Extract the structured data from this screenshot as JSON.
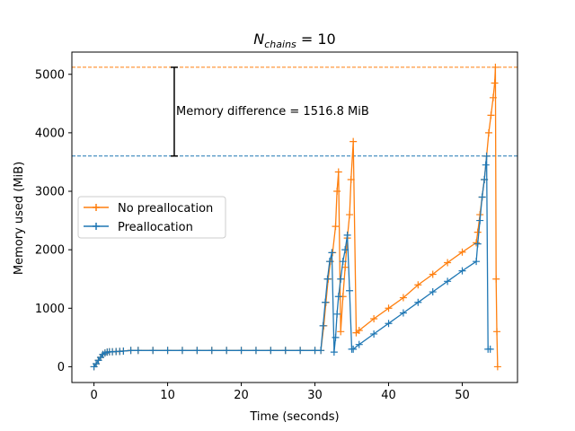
{
  "chart_data": {
    "type": "line",
    "title": "N_chains = 10",
    "title_main": "N",
    "title_sub": "chains",
    "title_rest": " = 10",
    "xlabel": "Time (seconds)",
    "ylabel": "Memory used (MiB)",
    "xlim": [
      -3,
      57.5
    ],
    "ylim": [
      -270,
      5380
    ],
    "xticks": [
      0,
      10,
      20,
      30,
      40,
      50
    ],
    "yticks": [
      0,
      1000,
      2000,
      3000,
      4000,
      5000
    ],
    "grid": false,
    "legend_position": "center-left",
    "series": [
      {
        "name": "No preallocation",
        "color": "#ff7f0e",
        "x": [
          0,
          0.3,
          0.6,
          0.9,
          1.2,
          1.5,
          1.8,
          2.1,
          2.5,
          3,
          3.5,
          4,
          5,
          6,
          8,
          10,
          12,
          14,
          16,
          18,
          20,
          22,
          24,
          26,
          28,
          30,
          30.8,
          31.2,
          31.5,
          31.8,
          32.1,
          32.4,
          32.8,
          33.0,
          33.2,
          33.5,
          33.8,
          34.1,
          34.4,
          34.7,
          34.9,
          35.2,
          35.6,
          36,
          38,
          40,
          42,
          44,
          46,
          48,
          50,
          51.9,
          52.1,
          52.4,
          52.7,
          53.0,
          53.3,
          53.6,
          53.9,
          54.2,
          54.4,
          54.5,
          54.6,
          54.7,
          54.8
        ],
        "y": [
          0,
          50,
          110,
          160,
          210,
          235,
          250,
          255,
          255,
          260,
          262,
          268,
          278,
          278,
          278,
          278,
          278,
          278,
          278,
          278,
          278,
          278,
          278,
          278,
          278,
          278,
          278,
          700,
          1100,
          1500,
          1800,
          1950,
          2400,
          3000,
          3330,
          600,
          1200,
          1700,
          2200,
          2600,
          3200,
          3850,
          580,
          620,
          820,
          1000,
          1180,
          1400,
          1580,
          1780,
          1960,
          2120,
          2300,
          2600,
          2900,
          3200,
          3600,
          4000,
          4300,
          4600,
          4850,
          5120,
          1500,
          600,
          0
        ]
      },
      {
        "name": "Preallocation",
        "color": "#1f77b4",
        "x": [
          0,
          0.3,
          0.6,
          0.9,
          1.2,
          1.5,
          1.8,
          2.1,
          2.5,
          3,
          3.5,
          4,
          5,
          6,
          8,
          10,
          12,
          14,
          16,
          18,
          20,
          22,
          24,
          26,
          28,
          30,
          30.8,
          31.1,
          31.4,
          31.7,
          32.0,
          32.3,
          32.6,
          32.8,
          33.0,
          33.2,
          33.5,
          33.8,
          34.1,
          34.4,
          34.7,
          35.0,
          35.2,
          36,
          38,
          40,
          42,
          44,
          46,
          48,
          50,
          51.9,
          52.1,
          52.4,
          52.7,
          53.0,
          53.2,
          53.3,
          53.5,
          53.8
        ],
        "y": [
          0,
          50,
          110,
          160,
          210,
          235,
          250,
          255,
          255,
          260,
          262,
          268,
          278,
          278,
          278,
          278,
          278,
          278,
          278,
          278,
          278,
          278,
          278,
          278,
          278,
          278,
          278,
          700,
          1100,
          1500,
          1800,
          1950,
          250,
          500,
          900,
          1200,
          1500,
          1800,
          2000,
          2250,
          1300,
          300,
          300,
          380,
          560,
          740,
          920,
          1100,
          1280,
          1460,
          1640,
          1800,
          2100,
          2500,
          2900,
          3200,
          3450,
          3600,
          300,
          300
        ]
      }
    ],
    "annotations": [
      {
        "text": "Memory difference = 1516.8 MiB",
        "x": 11.2,
        "y": 4310
      },
      {
        "type": "hline",
        "y": 5120,
        "color": "#ff7f0e",
        "style": "dashed"
      },
      {
        "type": "hline",
        "y": 3603,
        "color": "#1f77b4",
        "style": "dashed"
      },
      {
        "type": "errorbar",
        "x": 10.9,
        "y_low": 3603,
        "y_high": 5120
      }
    ]
  }
}
